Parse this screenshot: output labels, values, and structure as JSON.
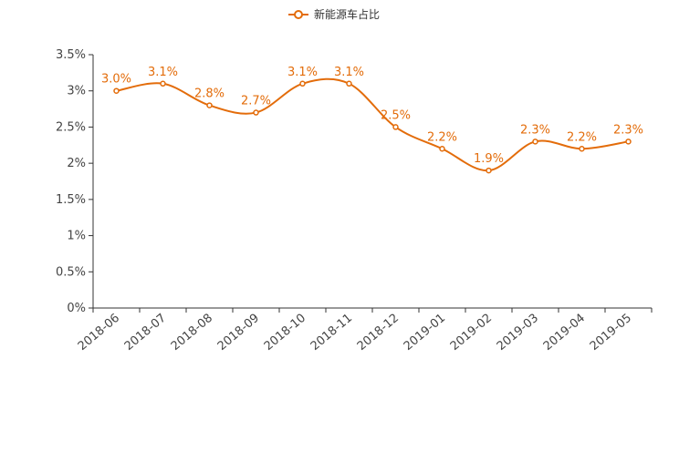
{
  "chart_data": {
    "type": "line",
    "title": "",
    "xlabel": "",
    "ylabel": "",
    "categories": [
      "2018-06",
      "2018-07",
      "2018-08",
      "2018-09",
      "2018-10",
      "2018-11",
      "2018-12",
      "2019-01",
      "2019-02",
      "2019-03",
      "2019-04",
      "2019-05"
    ],
    "series": [
      {
        "name": "新能源车占比",
        "values": [
          3.0,
          3.1,
          2.8,
          2.7,
          3.1,
          3.1,
          2.5,
          2.2,
          1.9,
          2.3,
          2.2,
          2.3
        ],
        "data_labels": [
          "3.0%",
          "3.1%",
          "2.8%",
          "2.7%",
          "3.1%",
          "3.1%",
          "2.5%",
          "2.2%",
          "1.9%",
          "2.3%",
          "2.2%",
          "2.3%"
        ],
        "color": "#e36c0a"
      }
    ],
    "ylim": [
      0,
      3.5
    ],
    "y_ticks": [
      {
        "value": 0,
        "label": "0%"
      },
      {
        "value": 0.5,
        "label": "0.5%"
      },
      {
        "value": 1,
        "label": "1%"
      },
      {
        "value": 1.5,
        "label": "1.5%"
      },
      {
        "value": 2,
        "label": "2%"
      },
      {
        "value": 2.5,
        "label": "2.5%"
      },
      {
        "value": 3,
        "label": "3%"
      },
      {
        "value": 3.5,
        "label": "3.5%"
      }
    ],
    "grid": false,
    "smooth": true,
    "legend_position": "top-center"
  }
}
